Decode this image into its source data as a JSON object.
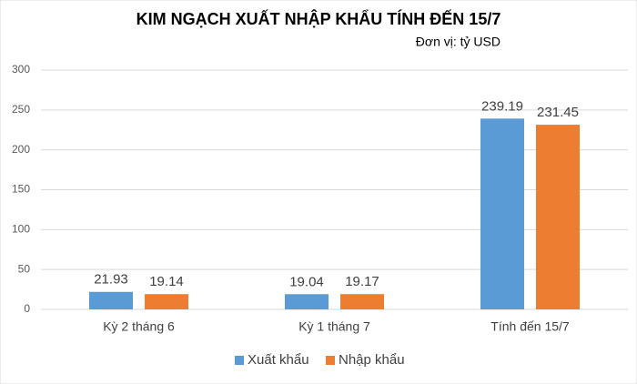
{
  "chart_data": {
    "type": "bar",
    "title": "KIM NGẠCH XUẤT NHẬP KHẨU TÍNH ĐẾN 15/7",
    "subtitle": "Đơn vị: tỷ USD",
    "categories": [
      "Kỳ 2 tháng 6",
      "Kỳ 1 tháng 7",
      "Tính đến 15/7"
    ],
    "series": [
      {
        "name": "Xuất khẩu",
        "color": "#5b9bd5",
        "values": [
          21.93,
          19.04,
          239.19
        ]
      },
      {
        "name": "Nhập khẩu",
        "color": "#ed7d31",
        "values": [
          19.14,
          19.17,
          231.45
        ]
      }
    ],
    "ylim": [
      0,
      300
    ],
    "yticks": [
      0,
      50,
      100,
      150,
      200,
      250,
      300
    ],
    "grid": true,
    "legend": "bottom"
  }
}
